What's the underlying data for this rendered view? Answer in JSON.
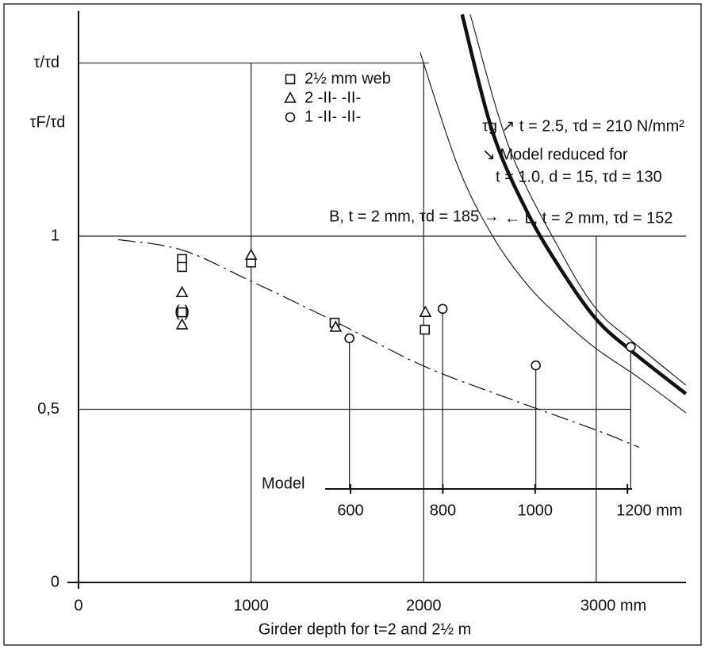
{
  "chart_data": {
    "type": "scatter",
    "x_label": "Girder depth for t=2 and 2½ m",
    "y_label": "τF/τd",
    "xlim": [
      0,
      3520
    ],
    "ylim": [
      0,
      1.65
    ],
    "xticks": [
      0,
      1000,
      2000,
      {
        "value": 3000,
        "label": "3000 mm"
      }
    ],
    "yticks": [
      0,
      {
        "value": 0.5,
        "label": "0,5"
      },
      1,
      {
        "value": 1.5,
        "label": "τ/τd"
      }
    ],
    "model_axis": {
      "label": "Model",
      "lim": [
        545,
        1210
      ],
      "ticks": [
        600,
        800,
        1000,
        {
          "value": 1200,
          "label": "1200 mm"
        }
      ]
    },
    "series": [
      {
        "name": "2½ mm web",
        "marker": "square",
        "color": "#111111",
        "x": [
          600,
          600,
          600,
          1000,
          1484,
          2007
        ],
        "values": [
          0.934,
          0.911,
          0.78,
          0.924,
          0.75,
          0.73
        ]
      },
      {
        "name": "2 -II- -II-",
        "marker": "triangle",
        "color": "#111111",
        "x": [
          600,
          600,
          1000,
          1490,
          2010
        ],
        "values": [
          0.837,
          0.744,
          0.945,
          0.737,
          0.78
        ]
      },
      {
        "name": "1 -II- -II-",
        "marker": "circle",
        "color": "#111111",
        "x": [
          1570,
          2110,
          2650,
          3200
        ],
        "values": [
          0.705,
          0.79,
          0.627,
          0.68
        ]
      }
    ],
    "curves": [
      {
        "style": "dash-dot",
        "x": [
          230,
          600,
          1000,
          1500,
          2000,
          2500,
          3000,
          3250
        ],
        "values": [
          0.99,
          0.96,
          0.87,
          0.75,
          0.625,
          0.53,
          0.44,
          0.39
        ]
      },
      {
        "style": "thick",
        "x": [
          2223,
          2400,
          2600,
          2800,
          3000,
          3200,
          3519
        ],
        "values": [
          1.64,
          1.3,
          1.07,
          0.9,
          0.76,
          0.67,
          0.545
        ]
      },
      {
        "style": "thin",
        "x": [
          1980,
          2200,
          2400,
          2600,
          2800,
          3000,
          3250,
          3519
        ],
        "values": [
          1.53,
          1.2,
          1.0,
          0.86,
          0.76,
          0.675,
          0.59,
          0.49
        ]
      },
      {
        "style": "thin",
        "x": [
          2270,
          2500,
          2800,
          3000,
          3200,
          3519
        ],
        "values": [
          1.64,
          1.25,
          0.95,
          0.79,
          0.7,
          0.57
        ]
      }
    ],
    "annotations": [
      "τg ↗ t = 2.5, τd = 210 N/mm²",
      "↘ Model reduced for",
      "t = 1.0, d = 15, τd = 130",
      "B, t = 2 mm, τd = 185 →",
      "← L,  t = 2 mm, τd = 152",
      "(    )"
    ]
  }
}
